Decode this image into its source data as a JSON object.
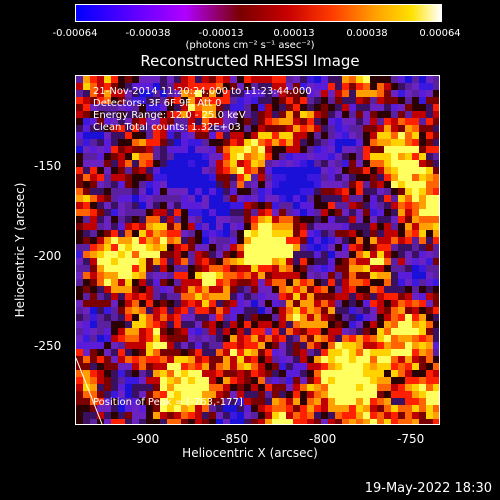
{
  "colorbar": {
    "ticks": [
      "-0.00064",
      "-0.00038",
      "-0.00013",
      "0.00013",
      "0.00038",
      "0.00064"
    ],
    "unit": "(photons cm⁻² s⁻¹ asec⁻²)",
    "colors": [
      "#0000ff",
      "#6a00ff",
      "#b000ff",
      "#7a0000",
      "#c80000",
      "#ff3b00",
      "#ffa000",
      "#ffe200",
      "#ffffff"
    ]
  },
  "title": "Reconstructed RHESSI Image",
  "info": {
    "time": "21-Nov-2014 11:20:24.000 to 11:23:44.000",
    "detectors": "Detectors: 3F 6F 9F, Att 0",
    "energy": "Energy Range: 12.0 - 25.0 keV",
    "algorithm": "Clean       Total counts: 1.32E+03"
  },
  "peak_label": "Position of Peak = [-763,-177]",
  "x_axis": {
    "label": "Heliocentric X (arcsec)",
    "ticks": [
      "-900",
      "-850",
      "-800",
      "-750"
    ]
  },
  "y_axis": {
    "label": "Heliocentric Y (arcsec)",
    "ticks": [
      "-150",
      "-200",
      "-250"
    ]
  },
  "footer": "19-May-2022 18:30"
}
